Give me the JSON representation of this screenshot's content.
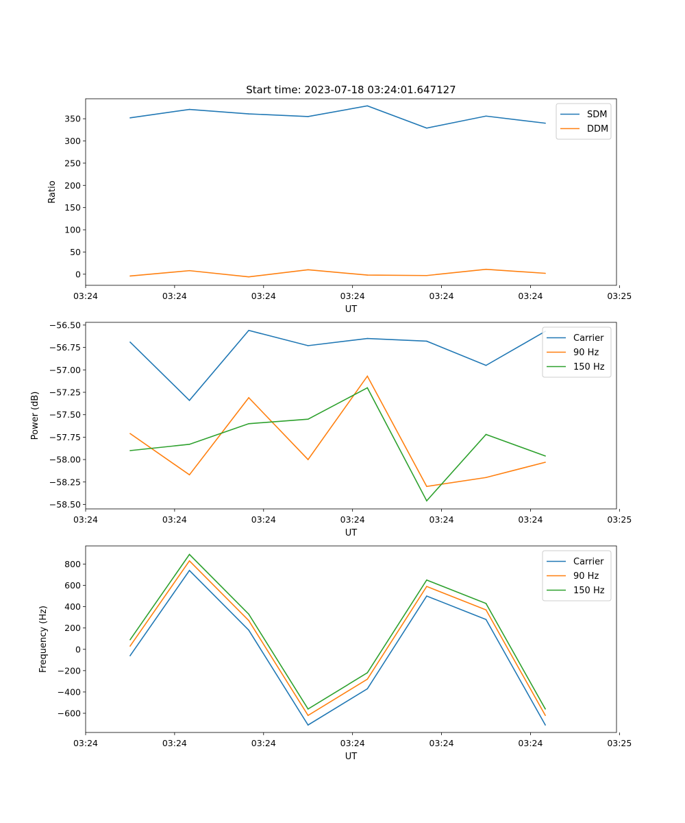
{
  "figure_title": "Start time: 2023-07-18 03:24:01.647127",
  "chart_data": [
    {
      "type": "line",
      "title": "Start time: 2023-07-18 03:24:01.647127",
      "xlabel": "UT",
      "ylabel": "Ratio",
      "x": [
        1,
        2,
        3,
        4,
        5,
        6,
        7,
        8
      ],
      "xlim": [
        0.25,
        9.2
      ],
      "xticks": [
        0.25,
        1.75,
        3.25,
        4.75,
        6.25,
        7.75,
        9.25
      ],
      "xtick_labels": [
        "03:24",
        "03:24",
        "03:24",
        "03:24",
        "03:24",
        "03:24",
        "03:25"
      ],
      "ylim": [
        -25,
        395
      ],
      "yticks": [
        0,
        50,
        100,
        150,
        200,
        250,
        300,
        350
      ],
      "ytick_labels": [
        "0",
        "50",
        "100",
        "150",
        "200",
        "250",
        "300",
        "350"
      ],
      "legend": "top-right",
      "series": [
        {
          "name": "SDM",
          "color": "#1f77b4",
          "values": [
            352,
            371,
            361,
            355,
            379,
            329,
            356,
            340
          ]
        },
        {
          "name": "DDM",
          "color": "#ff7f0e",
          "values": [
            -4,
            8,
            -6,
            10,
            -2,
            -3,
            11,
            2
          ]
        }
      ]
    },
    {
      "type": "line",
      "title": "",
      "xlabel": "UT",
      "ylabel": "Power (dB)",
      "x": [
        1,
        2,
        3,
        4,
        5,
        6,
        7,
        8
      ],
      "xlim": [
        0.25,
        9.2
      ],
      "xticks": [
        0.25,
        1.75,
        3.25,
        4.75,
        6.25,
        7.75,
        9.25
      ],
      "xtick_labels": [
        "03:24",
        "03:24",
        "03:24",
        "03:24",
        "03:24",
        "03:24",
        "03:25"
      ],
      "ylim": [
        -58.55,
        -56.47
      ],
      "yticks": [
        -58.5,
        -58.25,
        -58.0,
        -57.75,
        -57.5,
        -57.25,
        -57.0,
        -56.75,
        -56.5
      ],
      "ytick_labels": [
        "−58.50",
        "−58.25",
        "−58.00",
        "−57.75",
        "−57.50",
        "−57.25",
        "−57.00",
        "−56.75",
        "−56.50"
      ],
      "legend": "top-right",
      "series": [
        {
          "name": "Carrier",
          "color": "#1f77b4",
          "values": [
            -56.69,
            -57.34,
            -56.56,
            -56.73,
            -56.65,
            -56.68,
            -56.95,
            -56.57
          ]
        },
        {
          "name": "90 Hz",
          "color": "#ff7f0e",
          "values": [
            -57.71,
            -58.17,
            -57.31,
            -58.0,
            -57.07,
            -58.3,
            -58.2,
            -58.03
          ]
        },
        {
          "name": "150 Hz",
          "color": "#2ca02c",
          "values": [
            -57.9,
            -57.83,
            -57.6,
            -57.55,
            -57.2,
            -58.46,
            -57.72,
            -57.96
          ]
        }
      ]
    },
    {
      "type": "line",
      "title": "",
      "xlabel": "UT",
      "ylabel": "Frequency (Hz)",
      "x": [
        1,
        2,
        3,
        4,
        5,
        6,
        7,
        8
      ],
      "xlim": [
        0.25,
        9.2
      ],
      "xticks": [
        0.25,
        1.75,
        3.25,
        4.75,
        6.25,
        7.75,
        9.25
      ],
      "xtick_labels": [
        "03:24",
        "03:24",
        "03:24",
        "03:24",
        "03:24",
        "03:24",
        "03:25"
      ],
      "ylim": [
        -780,
        970
      ],
      "yticks": [
        -600,
        -400,
        -200,
        0,
        200,
        400,
        600,
        800
      ],
      "ytick_labels": [
        "−600",
        "−400",
        "−200",
        "0",
        "200",
        "400",
        "600",
        "800"
      ],
      "legend": "top-right",
      "series": [
        {
          "name": "Carrier",
          "color": "#1f77b4",
          "values": [
            -60,
            740,
            180,
            -710,
            -370,
            500,
            280,
            -710
          ]
        },
        {
          "name": "90 Hz",
          "color": "#ff7f0e",
          "values": [
            30,
            830,
            270,
            -620,
            -280,
            590,
            370,
            -620
          ]
        },
        {
          "name": "150 Hz",
          "color": "#2ca02c",
          "values": [
            90,
            890,
            330,
            -560,
            -220,
            650,
            430,
            -560
          ]
        }
      ]
    }
  ]
}
